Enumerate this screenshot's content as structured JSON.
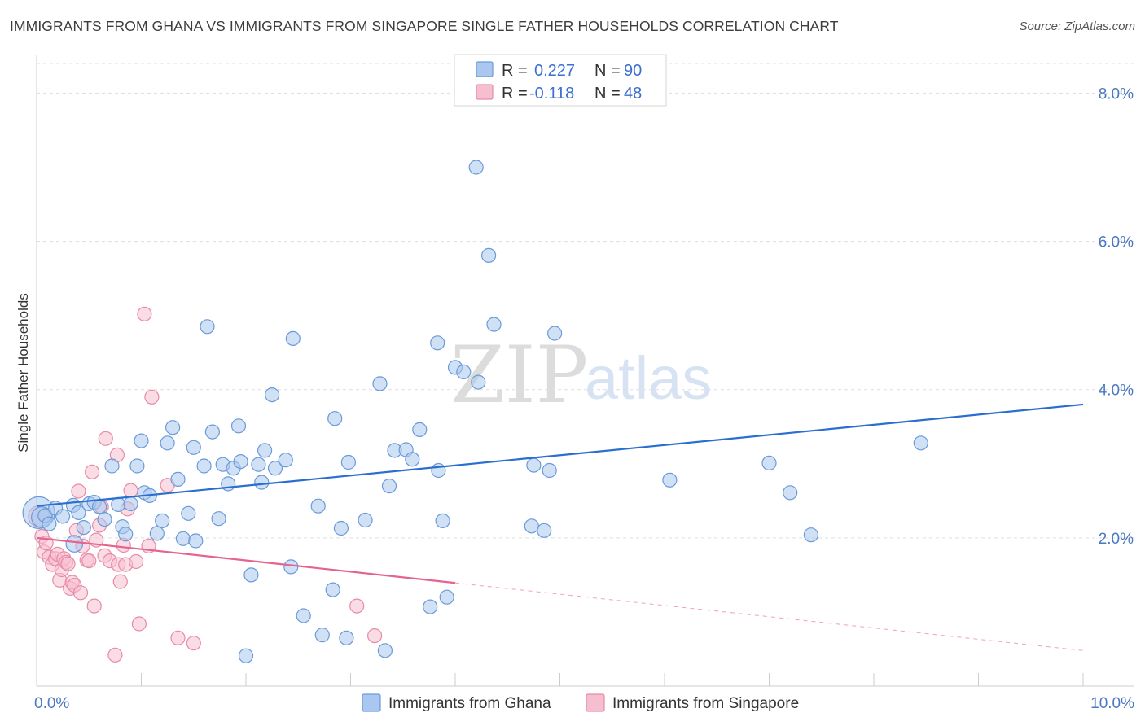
{
  "title": "IMMIGRANTS FROM GHANA VS IMMIGRANTS FROM SINGAPORE SINGLE FATHER HOUSEHOLDS CORRELATION CHART",
  "source": "Source: ZipAtlas.com",
  "watermark": {
    "zip": "ZIP",
    "atlas": "atlas"
  },
  "legend": {
    "rows": [
      {
        "r_label": "R =",
        "r_value": "0.227",
        "n_label": "N =",
        "n_value": "90"
      },
      {
        "r_label": "R =",
        "r_value": "-0.118",
        "n_label": "N =",
        "n_value": "48"
      }
    ]
  },
  "colors": {
    "ghana_fill": "#aac8ef",
    "ghana_stroke": "#6a9ad9",
    "ghana_line": "#2a6fcf",
    "singapore_fill": "#f6bfd0",
    "singapore_stroke": "#e98aa8",
    "singapore_line": "#e4638f",
    "tick_text": "#4a78c2",
    "grid": "#dddddd"
  },
  "chart_data": {
    "type": "scatter",
    "title": "IMMIGRANTS FROM GHANA VS IMMIGRANTS FROM SINGAPORE SINGLE FATHER HOUSEHOLDS CORRELATION CHART",
    "xlabel": "",
    "ylabel": "Single Father Households",
    "xlim": [
      0,
      10
    ],
    "ylim": [
      0,
      8.4
    ],
    "x_tick_labels": [
      {
        "value": 0,
        "label": "0.0%"
      },
      {
        "value": 10,
        "label": "10.0%"
      }
    ],
    "y_tick_labels": [
      {
        "value": 2,
        "label": "2.0%"
      },
      {
        "value": 4,
        "label": "4.0%"
      },
      {
        "value": 6,
        "label": "6.0%"
      },
      {
        "value": 8,
        "label": "8.0%"
      }
    ],
    "x_minor_ticks": [
      1,
      2,
      3,
      4,
      5,
      6,
      7,
      8,
      9,
      10
    ],
    "grid": true,
    "legend_position": "top-center",
    "series": [
      {
        "name": "Immigrants from Ghana",
        "r": 0.227,
        "n": 90,
        "trend": {
          "x0": 0,
          "y0": 2.43,
          "x1": 10,
          "y1": 3.8,
          "solid_until": 10
        },
        "points": [
          [
            0.02,
            2.34,
            2.3
          ],
          [
            0.05,
            2.28,
            1.5
          ],
          [
            0.08,
            2.3,
            1
          ],
          [
            0.12,
            2.19,
            1
          ],
          [
            0.18,
            2.4,
            1
          ],
          [
            0.25,
            2.29,
            1
          ],
          [
            0.35,
            2.44,
            1
          ],
          [
            0.36,
            1.92,
            1.2
          ],
          [
            0.4,
            2.34,
            1
          ],
          [
            0.45,
            2.14,
            1
          ],
          [
            0.5,
            2.46,
            1
          ],
          [
            0.55,
            2.48,
            1
          ],
          [
            0.6,
            2.42,
            1
          ],
          [
            0.65,
            2.25,
            1
          ],
          [
            0.72,
            2.97,
            1
          ],
          [
            0.78,
            2.45,
            1
          ],
          [
            0.82,
            2.15,
            1
          ],
          [
            0.85,
            2.05,
            1
          ],
          [
            0.9,
            2.46,
            1
          ],
          [
            0.96,
            2.97,
            1
          ],
          [
            1.0,
            3.31,
            1
          ],
          [
            1.03,
            2.61,
            1
          ],
          [
            1.08,
            2.57,
            1
          ],
          [
            1.15,
            2.06,
            1
          ],
          [
            1.2,
            2.23,
            1
          ],
          [
            1.25,
            3.28,
            1
          ],
          [
            1.3,
            3.49,
            1
          ],
          [
            1.35,
            2.79,
            1
          ],
          [
            1.4,
            1.99,
            1
          ],
          [
            1.45,
            2.33,
            1
          ],
          [
            1.5,
            3.22,
            1
          ],
          [
            1.52,
            1.96,
            1
          ],
          [
            1.6,
            2.97,
            1
          ],
          [
            1.63,
            4.85,
            1
          ],
          [
            1.68,
            3.43,
            1
          ],
          [
            1.74,
            2.26,
            1
          ],
          [
            1.78,
            2.99,
            1
          ],
          [
            1.83,
            2.73,
            1
          ],
          [
            1.88,
            2.94,
            1
          ],
          [
            1.93,
            3.51,
            1
          ],
          [
            1.95,
            3.03,
            1
          ],
          [
            2.0,
            0.41,
            1
          ],
          [
            2.05,
            1.5,
            1
          ],
          [
            2.12,
            2.99,
            1
          ],
          [
            2.15,
            2.75,
            1
          ],
          [
            2.18,
            3.18,
            1
          ],
          [
            2.25,
            3.93,
            1
          ],
          [
            2.28,
            2.94,
            1
          ],
          [
            2.38,
            3.05,
            1
          ],
          [
            2.45,
            4.69,
            1
          ],
          [
            2.43,
            1.61,
            1
          ],
          [
            2.55,
            0.95,
            1
          ],
          [
            2.69,
            2.43,
            1
          ],
          [
            2.73,
            0.69,
            1
          ],
          [
            2.83,
            1.3,
            1
          ],
          [
            2.85,
            3.61,
            1
          ],
          [
            2.91,
            2.13,
            1
          ],
          [
            2.96,
            0.65,
            1
          ],
          [
            2.98,
            3.02,
            1
          ],
          [
            3.14,
            2.24,
            1
          ],
          [
            3.28,
            4.08,
            1
          ],
          [
            3.33,
            0.48,
            1
          ],
          [
            3.37,
            2.7,
            1
          ],
          [
            3.42,
            3.18,
            1
          ],
          [
            3.53,
            3.19,
            1
          ],
          [
            3.59,
            3.06,
            1
          ],
          [
            3.66,
            3.46,
            1
          ],
          [
            3.76,
            1.07,
            1
          ],
          [
            3.83,
            4.63,
            1
          ],
          [
            3.84,
            2.91,
            1
          ],
          [
            3.88,
            2.23,
            1
          ],
          [
            3.92,
            1.2,
            1
          ],
          [
            4.0,
            4.3,
            1
          ],
          [
            4.08,
            4.24,
            1
          ],
          [
            4.2,
            7.0,
            1
          ],
          [
            4.22,
            4.1,
            1
          ],
          [
            4.32,
            5.81,
            1
          ],
          [
            4.37,
            4.88,
            1
          ],
          [
            4.73,
            2.16,
            1
          ],
          [
            4.75,
            2.98,
            1
          ],
          [
            4.85,
            2.1,
            1
          ],
          [
            4.9,
            2.91,
            1
          ],
          [
            4.95,
            4.76,
            1
          ],
          [
            6.05,
            2.78,
            1
          ],
          [
            7.0,
            3.01,
            1
          ],
          [
            7.2,
            2.61,
            1
          ],
          [
            7.4,
            2.04,
            1
          ],
          [
            8.45,
            3.28,
            1
          ]
        ]
      },
      {
        "name": "Immigrants from Singapore",
        "r": -0.118,
        "n": 48,
        "trend": {
          "x0": 0,
          "y0": 2.0,
          "x1": 10,
          "y1": 0.48,
          "solid_until": 4.0
        },
        "points": [
          [
            0.02,
            2.29,
            1.5
          ],
          [
            0.05,
            2.02,
            1
          ],
          [
            0.07,
            1.81,
            1
          ],
          [
            0.09,
            1.93,
            1
          ],
          [
            0.12,
            1.74,
            1
          ],
          [
            0.15,
            1.64,
            1
          ],
          [
            0.18,
            1.72,
            1
          ],
          [
            0.2,
            1.78,
            1
          ],
          [
            0.22,
            1.43,
            1
          ],
          [
            0.24,
            1.57,
            1
          ],
          [
            0.26,
            1.72,
            1
          ],
          [
            0.28,
            1.67,
            1
          ],
          [
            0.3,
            1.65,
            1
          ],
          [
            0.32,
            1.32,
            1
          ],
          [
            0.34,
            1.4,
            1
          ],
          [
            0.36,
            1.36,
            1
          ],
          [
            0.38,
            2.1,
            1
          ],
          [
            0.4,
            2.63,
            1
          ],
          [
            0.42,
            1.26,
            1
          ],
          [
            0.44,
            1.89,
            1
          ],
          [
            0.48,
            1.7,
            1
          ],
          [
            0.5,
            1.69,
            1
          ],
          [
            0.53,
            2.89,
            1
          ],
          [
            0.55,
            1.08,
            1
          ],
          [
            0.57,
            1.97,
            1
          ],
          [
            0.6,
            2.17,
            1
          ],
          [
            0.62,
            2.42,
            1
          ],
          [
            0.65,
            1.76,
            1
          ],
          [
            0.66,
            3.34,
            1
          ],
          [
            0.7,
            1.69,
            1
          ],
          [
            0.75,
            0.42,
            1
          ],
          [
            0.77,
            3.12,
            1
          ],
          [
            0.78,
            1.64,
            1
          ],
          [
            0.8,
            1.41,
            1
          ],
          [
            0.83,
            1.9,
            1
          ],
          [
            0.85,
            1.64,
            1
          ],
          [
            0.87,
            2.39,
            1
          ],
          [
            0.9,
            2.64,
            1
          ],
          [
            0.95,
            1.68,
            1
          ],
          [
            0.98,
            0.84,
            1
          ],
          [
            1.03,
            5.02,
            1
          ],
          [
            1.07,
            1.89,
            1
          ],
          [
            1.1,
            3.9,
            1
          ],
          [
            1.25,
            2.71,
            1
          ],
          [
            1.35,
            0.65,
            1
          ],
          [
            1.5,
            0.58,
            1
          ],
          [
            3.06,
            1.08,
            1
          ],
          [
            3.23,
            0.68,
            1
          ]
        ]
      }
    ]
  }
}
